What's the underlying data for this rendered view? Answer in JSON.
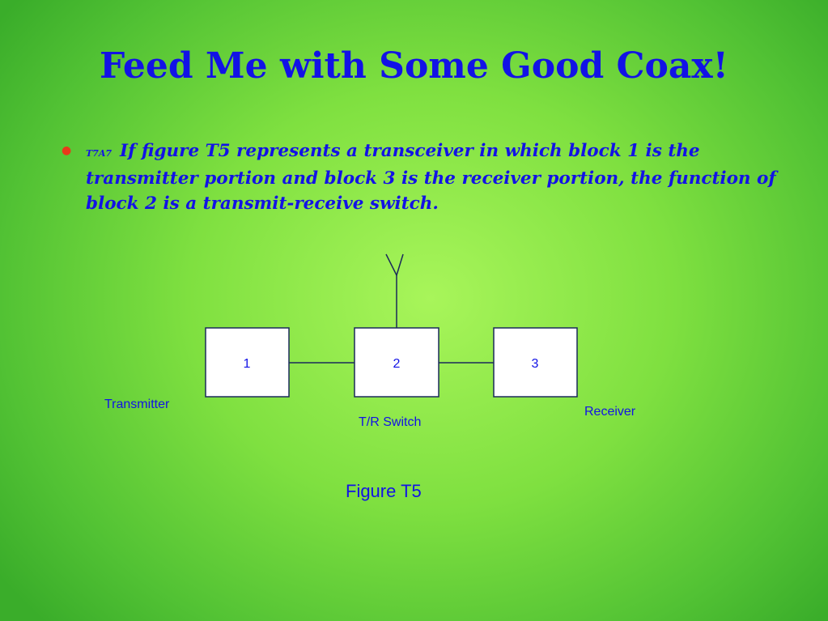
{
  "slide": {
    "title": "Feed Me with Some Good Coax!",
    "question": {
      "code": "T7A7",
      "text": "If figure T5 represents a transceiver in which block 1 is the transmitter portion and block 3 is the receiver portion, the function of block 2 is a transmit-receive switch."
    }
  },
  "diagram": {
    "blocks": [
      "1",
      "2",
      "3"
    ],
    "labels": {
      "transmitter": "Transmitter",
      "switch": "T/R Switch",
      "receiver": "Receiver"
    },
    "caption": "Figure T5"
  },
  "colors": {
    "text": "#1212e6",
    "bullet": "#e83a1a"
  }
}
